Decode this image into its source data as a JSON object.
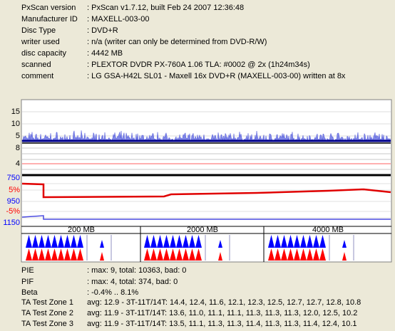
{
  "info": {
    "rows": [
      {
        "label": "PxScan version",
        "value": ": PxScan v1.7.12, built Feb 24 2007 12:36:48"
      },
      {
        "label": "Manufacturer ID",
        "value": ": MAXELL-003-00"
      },
      {
        "label": "Disc Type",
        "value": ": DVD+R"
      },
      {
        "label": "writer used",
        "value": ": n/a (writer can only be determined from DVD-R/W)"
      },
      {
        "label": "disc capacity",
        "value": ": 4442 MB"
      },
      {
        "label": "scanned",
        "value": ": PLEXTOR DVDR PX-760A 1.06 TLA: #0002 @ 2x (1h24m34s)"
      },
      {
        "label": "comment",
        "value": ": LG GSA-H42L SL01 - Maxell 16x DVD+R (MAXELL-003-00) written at 8x"
      }
    ]
  },
  "graph": {
    "pie_ticks": [
      "15",
      "10",
      "5"
    ],
    "pif_ticks": [
      "8",
      "4"
    ],
    "beta_ticks": [
      "750",
      "5%",
      "950",
      "-5%",
      "1150"
    ],
    "ta_headers": [
      "200 MB",
      "2000 MB",
      "4000 MB"
    ]
  },
  "stats": {
    "rows": [
      {
        "label": "PIE",
        "value": ": max: 9, total: 10363, bad: 0"
      },
      {
        "label": "PIF",
        "value": ": max: 4, total: 374, bad: 0"
      },
      {
        "label": "Beta",
        "value": ": -0.4% .. 8.1%"
      },
      {
        "label": "TA Test Zone 1",
        "value": "avg: 12.9 - 3T-11T/14T: 14.4, 12.4, 11.6, 12.1, 12.3, 12.5, 12.7, 12.7, 12.8, 10.8"
      },
      {
        "label": "TA Test Zone 2",
        "value": "avg: 11.9 - 3T-11T/14T: 13.6, 11.0, 11.1, 11.1, 11.3, 11.3, 11.3, 12.0, 12.5, 10.2"
      },
      {
        "label": "TA Test Zone 3",
        "value": "avg: 11.9 - 3T-11T/14T: 13.5, 11.1, 11.3, 11.3, 11.4, 11.3, 11.3, 11.4, 12.4, 10.1"
      }
    ]
  }
}
